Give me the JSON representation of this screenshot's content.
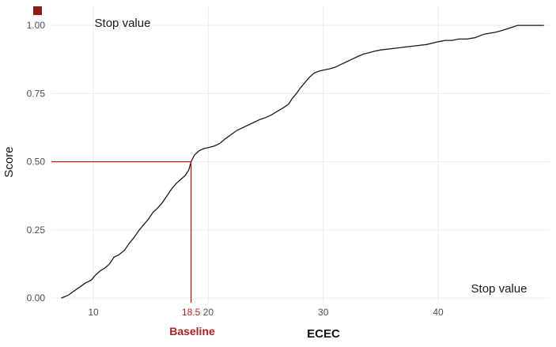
{
  "chart_data": {
    "type": "line",
    "title": "",
    "xlabel": "ECEC",
    "ylabel": "Score",
    "xlim": [
      6.35,
      49.7
    ],
    "ylim": [
      -0.023,
      1.07
    ],
    "grid": true,
    "legend": "none",
    "grid_color": "#ececec",
    "tick_color": "#4d4d4d",
    "accent_red": "#a82320",
    "x_ticks": [
      {
        "value": 10,
        "label": "10",
        "grid": true,
        "color": "#4d4d4d"
      },
      {
        "value": 18.5,
        "label": "18.5",
        "grid": false,
        "color": "#a82320"
      },
      {
        "value": 20,
        "label": "20",
        "grid": true,
        "color": "#4d4d4d"
      },
      {
        "value": 30,
        "label": "30",
        "grid": true,
        "color": "#4d4d4d"
      },
      {
        "value": 40,
        "label": "40",
        "grid": true,
        "color": "#4d4d4d"
      }
    ],
    "y_ticks": [
      {
        "value": 0,
        "label": "0.00"
      },
      {
        "value": 0.25,
        "label": "0.25"
      },
      {
        "value": 0.5,
        "label": "0.50"
      },
      {
        "value": 0.75,
        "label": "0.75"
      },
      {
        "value": 1,
        "label": "1.00"
      }
    ],
    "reference": {
      "x": 18.5,
      "y": 0.5,
      "color": "#a82320"
    },
    "marker": {
      "shape": "square",
      "color": "#8e1b14"
    },
    "annotations": {
      "top_left": {
        "text": "Stop value"
      },
      "bottom_right": {
        "text": "Stop value"
      },
      "baseline": {
        "text": "Baseline"
      }
    },
    "series": [
      {
        "name": "score-ecdf-curve",
        "color": "#1a1a1a",
        "points": [
          [
            7.2,
            0.0
          ],
          [
            7.8,
            0.01
          ],
          [
            8.3,
            0.025
          ],
          [
            8.8,
            0.04
          ],
          [
            9.3,
            0.055
          ],
          [
            9.8,
            0.065
          ],
          [
            10.2,
            0.085
          ],
          [
            10.6,
            0.1
          ],
          [
            11.0,
            0.11
          ],
          [
            11.4,
            0.125
          ],
          [
            11.8,
            0.15
          ],
          [
            12.2,
            0.158
          ],
          [
            12.7,
            0.175
          ],
          [
            13.1,
            0.2
          ],
          [
            13.5,
            0.22
          ],
          [
            14.0,
            0.25
          ],
          [
            14.4,
            0.27
          ],
          [
            14.8,
            0.29
          ],
          [
            15.2,
            0.315
          ],
          [
            15.6,
            0.33
          ],
          [
            16.0,
            0.35
          ],
          [
            16.4,
            0.375
          ],
          [
            16.8,
            0.4
          ],
          [
            17.2,
            0.42
          ],
          [
            17.6,
            0.435
          ],
          [
            18.0,
            0.45
          ],
          [
            18.3,
            0.47
          ],
          [
            18.5,
            0.5
          ],
          [
            18.8,
            0.525
          ],
          [
            19.2,
            0.54
          ],
          [
            19.6,
            0.548
          ],
          [
            20.0,
            0.552
          ],
          [
            20.5,
            0.557
          ],
          [
            21.0,
            0.567
          ],
          [
            21.5,
            0.585
          ],
          [
            22.0,
            0.6
          ],
          [
            22.5,
            0.615
          ],
          [
            23.0,
            0.625
          ],
          [
            23.5,
            0.635
          ],
          [
            24.0,
            0.645
          ],
          [
            24.5,
            0.655
          ],
          [
            25.0,
            0.662
          ],
          [
            25.5,
            0.672
          ],
          [
            26.0,
            0.685
          ],
          [
            26.5,
            0.697
          ],
          [
            27.0,
            0.712
          ],
          [
            27.3,
            0.732
          ],
          [
            27.7,
            0.752
          ],
          [
            28.0,
            0.77
          ],
          [
            28.4,
            0.79
          ],
          [
            28.8,
            0.81
          ],
          [
            29.2,
            0.825
          ],
          [
            29.6,
            0.832
          ],
          [
            30.0,
            0.836
          ],
          [
            30.5,
            0.84
          ],
          [
            31.0,
            0.846
          ],
          [
            31.5,
            0.856
          ],
          [
            32.0,
            0.866
          ],
          [
            32.5,
            0.876
          ],
          [
            33.0,
            0.886
          ],
          [
            33.5,
            0.895
          ],
          [
            34.0,
            0.9
          ],
          [
            34.5,
            0.906
          ],
          [
            35.0,
            0.91
          ],
          [
            36.0,
            0.915
          ],
          [
            37.0,
            0.92
          ],
          [
            38.0,
            0.925
          ],
          [
            39.0,
            0.93
          ],
          [
            40.0,
            0.94
          ],
          [
            40.6,
            0.945
          ],
          [
            41.2,
            0.945
          ],
          [
            41.8,
            0.95
          ],
          [
            42.5,
            0.95
          ],
          [
            43.2,
            0.955
          ],
          [
            44.0,
            0.968
          ],
          [
            45.0,
            0.975
          ],
          [
            45.6,
            0.982
          ],
          [
            46.2,
            0.99
          ],
          [
            46.9,
            1.0
          ],
          [
            49.2,
            1.0
          ]
        ]
      }
    ]
  }
}
